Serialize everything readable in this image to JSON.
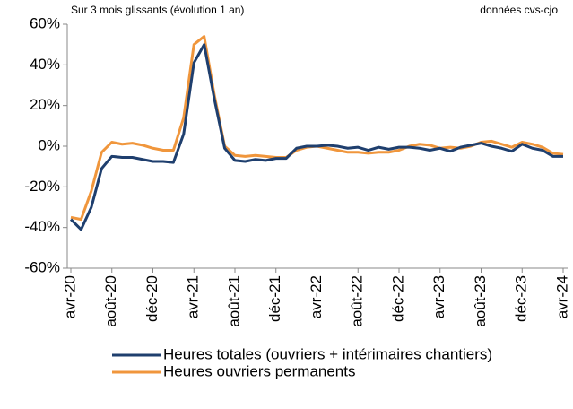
{
  "chart_data": {
    "type": "line",
    "subtitle_left": "Sur 3 mois glissants (évolution 1 an)",
    "subtitle_right": "données cvs-cjo",
    "categories": [
      "avr-20",
      null,
      null,
      null,
      "août-20",
      null,
      null,
      null,
      "déc-20",
      null,
      null,
      null,
      "avr-21",
      null,
      null,
      null,
      "août-21",
      null,
      null,
      null,
      "déc-21",
      null,
      null,
      null,
      "avr-22",
      null,
      null,
      null,
      "août-22",
      null,
      null,
      null,
      "déc-22",
      null,
      null,
      null,
      "avr-23",
      null,
      null,
      null,
      "août-23",
      null,
      null,
      null,
      "déc-23",
      null,
      null,
      null,
      "avr-24"
    ],
    "series": [
      {
        "name": "Heures totales (ouvriers + intérimaires chantiers)",
        "color": "#1f3f6e",
        "values": [
          -36,
          -41,
          -30,
          -11,
          -5,
          -5.5,
          -5.5,
          -6.5,
          -7.5,
          -7.5,
          -8,
          6,
          41,
          50,
          23,
          -1,
          -7,
          -7.5,
          -6.5,
          -7,
          -6,
          -6,
          -1,
          0,
          0,
          0.5,
          0,
          -1,
          -0.5,
          -2,
          -0.5,
          -1.5,
          -0.5,
          -0.5,
          -1,
          -2,
          -1,
          -2.5,
          -0.5,
          0.5,
          1.5,
          0,
          -1,
          -2.5,
          1,
          -1,
          -2,
          -5,
          -5
        ]
      },
      {
        "name": "Heures ouvriers permanents",
        "color": "#f0963c",
        "values": [
          -35,
          -36,
          -22,
          -3,
          2,
          1,
          1.5,
          0.5,
          -1,
          -2,
          -2,
          14,
          50,
          54,
          25,
          0,
          -4.5,
          -5,
          -4.5,
          -5,
          -5.5,
          -5.5,
          -2,
          -0.5,
          0,
          -1,
          -2,
          -3,
          -3,
          -3.5,
          -3,
          -3,
          -2,
          0,
          1,
          0.5,
          -1,
          -0.5,
          -1,
          0,
          2,
          2.5,
          1,
          -0.5,
          2,
          1,
          -0.5,
          -3.5,
          -4
        ]
      }
    ],
    "ylim": [
      -60,
      60
    ],
    "yticks": [
      {
        "value": -60,
        "label": "-60%"
      },
      {
        "value": -40,
        "label": "-40%"
      },
      {
        "value": -20,
        "label": "-20%"
      },
      {
        "value": 0,
        "label": "0%"
      },
      {
        "value": 20,
        "label": "20%"
      },
      {
        "value": 40,
        "label": "40%"
      },
      {
        "value": 60,
        "label": "60%"
      }
    ],
    "grid": false
  }
}
